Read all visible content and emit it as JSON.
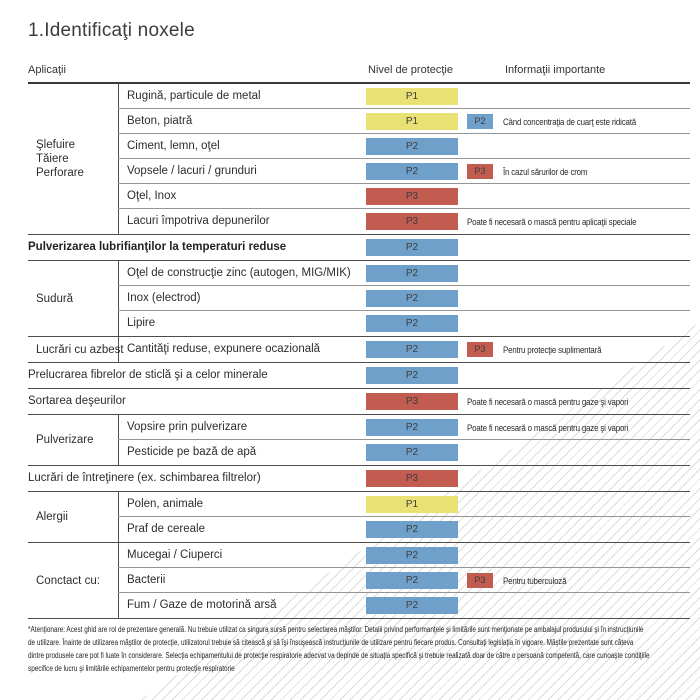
{
  "title": "1.Identificaţi noxele",
  "columns": {
    "applications": "Aplicaţii",
    "protection": "Nivel de protecţie",
    "info": "Informaţii importante"
  },
  "levels": {
    "P1": {
      "label": "P1",
      "color": "#E9E173"
    },
    "P2": {
      "label": "P2",
      "color": "#6FA0C9"
    },
    "P3": {
      "label": "P3",
      "color": "#C25B50"
    }
  },
  "table": {
    "blocks": [
      {
        "type": "group",
        "label": "Şlefuire\nTăiere\nPerforare",
        "rows": [
          {
            "text": "Rugină, particule de metal",
            "level": "P1"
          },
          {
            "text": "Beton, piatră",
            "level": "P1",
            "badge": "P2",
            "note": "Când concentraţia de cuarţ este ridicată"
          },
          {
            "text": "Ciment, lemn, oţel",
            "level": "P2"
          },
          {
            "text": "Vopsele / lacuri / grunduri",
            "level": "P2",
            "badge": "P3",
            "note": "În cazul sărurilor de crom"
          },
          {
            "text": "Oţel, Inox",
            "level": "P3"
          },
          {
            "text": "Lacuri împotriva depunerilor",
            "level": "P3",
            "note": "Poate fi necesară o mască pentru aplicaţii speciale"
          }
        ]
      },
      {
        "type": "full",
        "bold": true,
        "text": "Pulverizarea lubrifianţilor la temperaturi reduse",
        "level": "P2"
      },
      {
        "type": "group",
        "label": "Sudură",
        "rows": [
          {
            "text": "Oţel de construcţie zinc (autogen, MIG/MIK)",
            "level": "P2"
          },
          {
            "text": "Inox (electrod)",
            "level": "P2"
          },
          {
            "text": "Lipire",
            "level": "P2"
          }
        ]
      },
      {
        "type": "group",
        "label": "Lucrări cu azbest",
        "rows": [
          {
            "text": "Cantităţi reduse, expunere ocazională",
            "level": "P2",
            "badge": "P3",
            "note": "Pentru protecţie suplimentară"
          }
        ]
      },
      {
        "type": "full",
        "text": "Prelucrarea fibrelor de sticlă şi a celor minerale",
        "level": "P2"
      },
      {
        "type": "full",
        "text": "Sortarea deşeurilor",
        "level": "P3",
        "note": "Poate fi necesară o mască pentru gaze şi vapori"
      },
      {
        "type": "group",
        "label": "Pulverizare",
        "rows": [
          {
            "text": "Vopsire prin pulverizare",
            "level": "P2",
            "note": "Poate fi necesară o mască pentru gaze şi vapori"
          },
          {
            "text": "Pesticide pe bază de apă",
            "level": "P2"
          }
        ]
      },
      {
        "type": "full",
        "text": "Lucrări de întreţinere (ex. schimbarea filtrelor)",
        "level": "P3"
      },
      {
        "type": "group",
        "label": "Alergii",
        "rows": [
          {
            "text": "Polen, animale",
            "level": "P1"
          },
          {
            "text": "Praf de cereale",
            "level": "P2"
          }
        ]
      },
      {
        "type": "group",
        "label": "Conctact cu:",
        "rows": [
          {
            "text": "Mucegai / Ciuperci",
            "level": "P2"
          },
          {
            "text": "Bacterii",
            "level": "P2",
            "badge": "P3",
            "note": "Pentru tuberculoză"
          },
          {
            "text": "Fum / Gaze de motorină arsă",
            "level": "P2"
          }
        ]
      }
    ]
  },
  "footnote": {
    "lines": [
      "*Atenţionare: Acest ghid are rol de prezentare generală. Nu trebuie utilizat ca singura sursă pentru selectarea măştilor. Detalii privind performanţele şi limitările sunt menţionate pe ambalajul produsului şi în instrucţiunile",
      "de utilizare. Înainte de utilizarea măştilor de protecţie, utilizatorul trebuie să citească şi să îşi însuşească instrucţiunile de utilizare pentru fiecare produs. Consultaţi legislaţia în vigoare. Măştile prezentate sunt câteva",
      "dintre produsele care pot fi luate în considerare. Selecţia echipamentului de protecţie respiratorie adecvat va depinde de situaţia specifică şi trebuie realizată doar de către o persoană competentă, care cunoaşte condiţiile",
      "specifice de lucru şi limitările echipamentelor pentru protecţie respiratorie"
    ]
  }
}
